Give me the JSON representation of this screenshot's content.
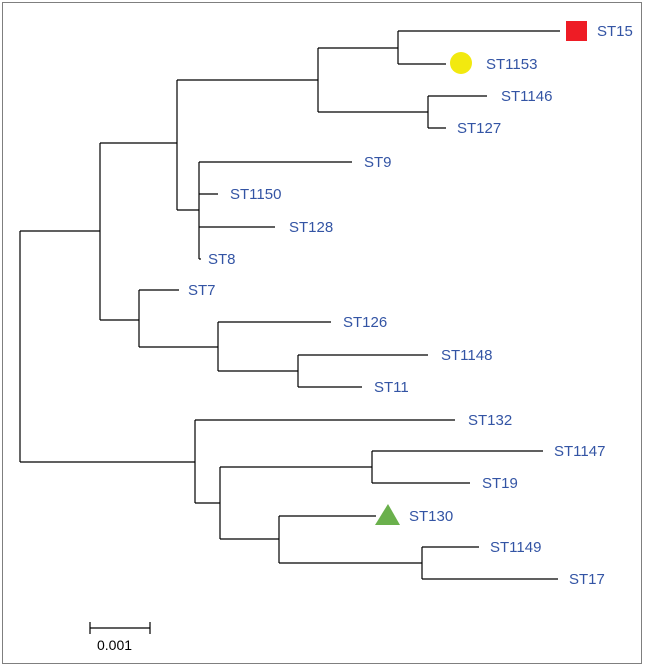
{
  "tree": {
    "tips": {
      "st15": "ST15",
      "st1153": "ST1153",
      "st1146": "ST1146",
      "st127": "ST127",
      "st9": "ST9",
      "st1150": "ST1150",
      "st128": "ST128",
      "st8": "ST8",
      "st7": "ST7",
      "st126": "ST126",
      "st1148": "ST1148",
      "st11": "ST11",
      "st132": "ST132",
      "st1147": "ST1147",
      "st19": "ST19",
      "st130": "ST130",
      "st1149": "ST1149",
      "st17": "ST17"
    },
    "markers": {
      "st15": {
        "shape": "square",
        "color": "#ee1c25"
      },
      "st1153": {
        "shape": "circle",
        "color": "#f2e90f"
      },
      "st130": {
        "shape": "triangle",
        "color": "#6ab04c"
      }
    }
  },
  "scale_bar": {
    "label": "0.001"
  },
  "colors": {
    "label": "#3354a4",
    "branch": "#000000",
    "frame": "#7f7f7f"
  }
}
